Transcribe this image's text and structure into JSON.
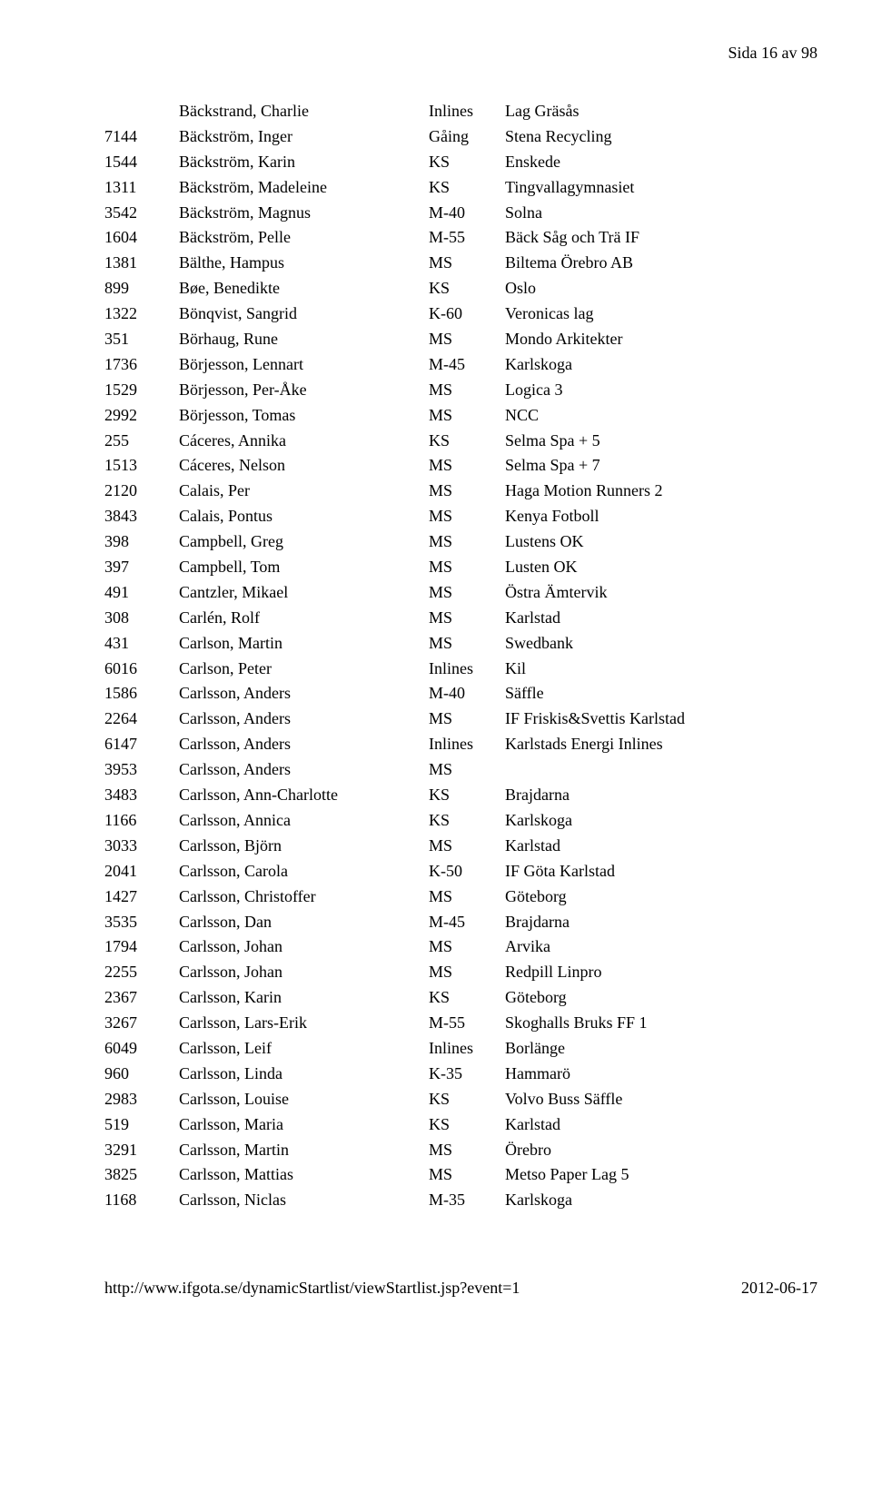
{
  "page_label": "Sida 16 av 98",
  "footer_left": "http://www.ifgota.se/dynamicStartlist/viewStartlist.jsp?event=1",
  "footer_right": "2012-06-17",
  "rows": [
    {
      "bib": "",
      "name": "Bäckstrand, Charlie",
      "cls": "Inlines",
      "team": "Lag Gräsås"
    },
    {
      "bib": "7144",
      "name": "Bäckström, Inger",
      "cls": "Gåing",
      "team": "Stena Recycling"
    },
    {
      "bib": "1544",
      "name": "Bäckström, Karin",
      "cls": "KS",
      "team": "Enskede"
    },
    {
      "bib": "1311",
      "name": "Bäckström, Madeleine",
      "cls": "KS",
      "team": "Tingvallagymnasiet"
    },
    {
      "bib": "3542",
      "name": "Bäckström, Magnus",
      "cls": "M-40",
      "team": "Solna"
    },
    {
      "bib": "1604",
      "name": "Bäckström, Pelle",
      "cls": "M-55",
      "team": "Bäck Såg och Trä IF"
    },
    {
      "bib": "1381",
      "name": "Bälthe, Hampus",
      "cls": "MS",
      "team": "Biltema Örebro AB"
    },
    {
      "bib": "899",
      "name": "Bøe, Benedikte",
      "cls": "KS",
      "team": "Oslo"
    },
    {
      "bib": "1322",
      "name": "Bönqvist, Sangrid",
      "cls": "K-60",
      "team": "Veronicas lag"
    },
    {
      "bib": "351",
      "name": "Börhaug, Rune",
      "cls": "MS",
      "team": "Mondo Arkitekter"
    },
    {
      "bib": "1736",
      "name": "Börjesson, Lennart",
      "cls": "M-45",
      "team": "Karlskoga"
    },
    {
      "bib": "1529",
      "name": "Börjesson, Per-Åke",
      "cls": "MS",
      "team": "Logica 3"
    },
    {
      "bib": "2992",
      "name": "Börjesson, Tomas",
      "cls": "MS",
      "team": "NCC"
    },
    {
      "bib": "255",
      "name": "Cáceres, Annika",
      "cls": "KS",
      "team": "Selma Spa + 5"
    },
    {
      "bib": "1513",
      "name": "Cáceres, Nelson",
      "cls": "MS",
      "team": "Selma Spa + 7"
    },
    {
      "bib": "2120",
      "name": "Calais, Per",
      "cls": "MS",
      "team": "Haga Motion Runners 2"
    },
    {
      "bib": "3843",
      "name": "Calais, Pontus",
      "cls": "MS",
      "team": "Kenya Fotboll"
    },
    {
      "bib": "398",
      "name": "Campbell, Greg",
      "cls": "MS",
      "team": "Lustens OK"
    },
    {
      "bib": "397",
      "name": "Campbell, Tom",
      "cls": "MS",
      "team": "Lusten OK"
    },
    {
      "bib": "491",
      "name": "Cantzler, Mikael",
      "cls": "MS",
      "team": "Östra Ämtervik"
    },
    {
      "bib": "308",
      "name": "Carlén, Rolf",
      "cls": "MS",
      "team": "Karlstad"
    },
    {
      "bib": "431",
      "name": "Carlson, Martin",
      "cls": "MS",
      "team": "Swedbank"
    },
    {
      "bib": "6016",
      "name": "Carlson, Peter",
      "cls": "Inlines",
      "team": "Kil"
    },
    {
      "bib": "1586",
      "name": "Carlsson, Anders",
      "cls": "M-40",
      "team": "Säffle"
    },
    {
      "bib": "2264",
      "name": "Carlsson, Anders",
      "cls": "MS",
      "team": "IF Friskis&Svettis Karlstad"
    },
    {
      "bib": "6147",
      "name": "Carlsson, Anders",
      "cls": "Inlines",
      "team": "Karlstads Energi Inlines"
    },
    {
      "bib": "3953",
      "name": "Carlsson, Anders",
      "cls": "MS",
      "team": ""
    },
    {
      "bib": "3483",
      "name": "Carlsson, Ann-Charlotte",
      "cls": "KS",
      "team": "Brajdarna"
    },
    {
      "bib": "1166",
      "name": "Carlsson, Annica",
      "cls": "KS",
      "team": "Karlskoga"
    },
    {
      "bib": "3033",
      "name": "Carlsson, Björn",
      "cls": "MS",
      "team": "Karlstad"
    },
    {
      "bib": "2041",
      "name": "Carlsson, Carola",
      "cls": "K-50",
      "team": "IF Göta Karlstad"
    },
    {
      "bib": "1427",
      "name": "Carlsson, Christoffer",
      "cls": "MS",
      "team": "Göteborg"
    },
    {
      "bib": "3535",
      "name": "Carlsson, Dan",
      "cls": "M-45",
      "team": "Brajdarna"
    },
    {
      "bib": "1794",
      "name": "Carlsson, Johan",
      "cls": "MS",
      "team": "Arvika"
    },
    {
      "bib": "2255",
      "name": "Carlsson, Johan",
      "cls": "MS",
      "team": "Redpill Linpro"
    },
    {
      "bib": "2367",
      "name": "Carlsson, Karin",
      "cls": "KS",
      "team": "Göteborg"
    },
    {
      "bib": "3267",
      "name": "Carlsson, Lars-Erik",
      "cls": "M-55",
      "team": "Skoghalls Bruks FF 1"
    },
    {
      "bib": "6049",
      "name": "Carlsson, Leif",
      "cls": "Inlines",
      "team": "Borlänge"
    },
    {
      "bib": "960",
      "name": "Carlsson, Linda",
      "cls": "K-35",
      "team": "Hammarö"
    },
    {
      "bib": "2983",
      "name": "Carlsson, Louise",
      "cls": "KS",
      "team": "Volvo Buss Säffle"
    },
    {
      "bib": "519",
      "name": "Carlsson, Maria",
      "cls": "KS",
      "team": "Karlstad"
    },
    {
      "bib": "3291",
      "name": "Carlsson, Martin",
      "cls": "MS",
      "team": "Örebro"
    },
    {
      "bib": "3825",
      "name": "Carlsson, Mattias",
      "cls": "MS",
      "team": "Metso Paper Lag 5"
    },
    {
      "bib": "1168",
      "name": "Carlsson, Niclas",
      "cls": "M-35",
      "team": "Karlskoga"
    }
  ]
}
